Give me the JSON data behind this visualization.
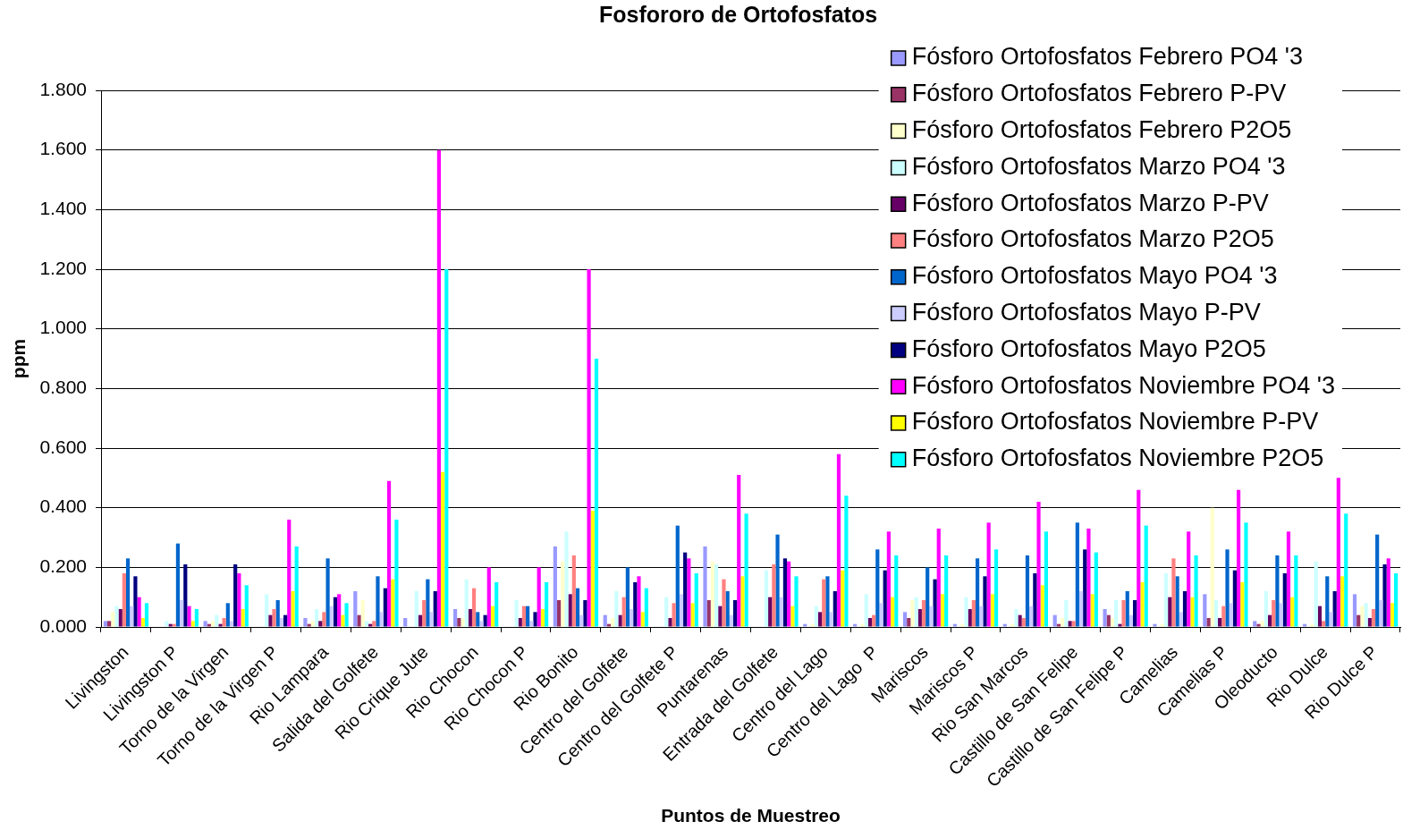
{
  "chart_data": {
    "type": "bar",
    "title": "Fosfororo de Ortofosfatos",
    "xlabel": "Puntos de Muestreo",
    "ylabel": "ppm",
    "categories": [
      "Livingston",
      "Livingston P",
      "Torno de la Virgen",
      "Torno de la Virgen P",
      "Rio Lampara",
      "Salida del Golfete",
      "Rio Crique Jute",
      "Rio Chocon",
      "Rio Chocon P",
      "Rio Bonito",
      "Centro del Golfete",
      "Centro del Golfete P",
      "Puntarenas",
      "Entrada del Golfete",
      "Centro del Lago",
      "Centro del Lago  P",
      "Mariscos",
      "Mariscos P",
      "Rio San Marcos",
      "Castillo de San Felipe",
      "Castillo de San Felipe P",
      "Camelias",
      "Camelias P",
      "Oleoducto",
      "Rio Dulce",
      "Rio Dulce P"
    ],
    "series": [
      {
        "name": "Fósforo Ortofosfatos Febrero PO4 '3",
        "color": "#9999ff",
        "values": [
          0.02,
          null,
          0.02,
          null,
          0.03,
          0.12,
          0.03,
          0.06,
          null,
          0.27,
          0.04,
          null,
          0.27,
          null,
          0.01,
          0.01,
          0.05,
          0.01,
          0.01,
          0.04,
          0.06,
          0.01,
          0.11,
          0.02,
          0.01,
          0.11
        ]
      },
      {
        "name": "Fósforo Ortofosfatos Febrero P-PV",
        "color": "#993366",
        "values": [
          0.02,
          null,
          0.01,
          null,
          0.01,
          0.04,
          null,
          0.03,
          null,
          0.09,
          0.01,
          null,
          0.09,
          null,
          null,
          null,
          0.03,
          null,
          null,
          0.01,
          0.04,
          null,
          0.03,
          0.01,
          null,
          0.04
        ]
      },
      {
        "name": "Fósforo Ortofosfatos Febrero P2O5",
        "color": "#ffffcc",
        "values": [
          0.05,
          null,
          0.02,
          null,
          0.02,
          0.09,
          null,
          0.03,
          null,
          0.22,
          0.03,
          null,
          0.22,
          null,
          0.01,
          0.01,
          0.09,
          0.01,
          0.01,
          0.03,
          0.03,
          0.01,
          0.4,
          0.02,
          0.01,
          0.07
        ]
      },
      {
        "name": "Fósforo Ortofosfatos Marzo PO4 '3",
        "color": "#ccffff",
        "values": [
          0.07,
          0.02,
          0.04,
          0.11,
          0.06,
          0.02,
          0.12,
          0.16,
          0.09,
          0.32,
          0.12,
          0.1,
          0.21,
          0.19,
          0.07,
          0.11,
          0.1,
          0.1,
          0.06,
          0.09,
          0.09,
          0.18,
          0.09,
          0.12,
          0.22,
          0.08
        ]
      },
      {
        "name": "Fósforo Ortofosfatos Marzo P-PV",
        "color": "#660066",
        "values": [
          0.06,
          0.01,
          0.01,
          0.04,
          0.02,
          0.01,
          0.04,
          0.06,
          0.03,
          0.11,
          0.04,
          0.03,
          0.07,
          0.1,
          0.05,
          0.03,
          0.06,
          0.06,
          0.04,
          0.02,
          0.01,
          0.1,
          0.03,
          0.04,
          0.07,
          0.03
        ]
      },
      {
        "name": "Fósforo Ortofosfatos Marzo P2O5",
        "color": "#ff8080",
        "values": [
          0.18,
          0.01,
          0.03,
          0.06,
          0.05,
          0.02,
          0.09,
          0.13,
          0.07,
          0.24,
          0.1,
          0.08,
          0.16,
          0.21,
          0.16,
          0.04,
          0.09,
          0.09,
          0.03,
          0.02,
          0.09,
          0.23,
          0.07,
          0.09,
          0.02,
          0.06
        ]
      },
      {
        "name": "Fósforo Ortofosfatos Mayo PO4 '3",
        "color": "#0066cc",
        "values": [
          0.23,
          0.28,
          0.08,
          0.09,
          0.23,
          0.17,
          0.16,
          0.05,
          0.07,
          0.13,
          0.2,
          0.34,
          0.12,
          0.31,
          0.17,
          0.26,
          0.2,
          0.23,
          0.24,
          0.35,
          0.12,
          0.17,
          0.26,
          0.24,
          0.17,
          0.31
        ]
      },
      {
        "name": "Fósforo Ortofosfatos Mayo P-PV",
        "color": "#ccccff",
        "values": [
          0.07,
          0.09,
          0.02,
          0.03,
          0.07,
          0.05,
          0.05,
          0.02,
          0.02,
          0.04,
          0.06,
          0.11,
          0.04,
          0.1,
          0.05,
          0.08,
          0.07,
          0.07,
          0.07,
          0.12,
          0.04,
          0.05,
          0.08,
          0.08,
          0.05,
          0.09
        ]
      },
      {
        "name": "Fósforo Ortofosfatos Mayo P2O5",
        "color": "#000080",
        "values": [
          0.17,
          0.21,
          0.21,
          0.04,
          0.1,
          0.13,
          0.12,
          0.04,
          0.05,
          0.09,
          0.15,
          0.25,
          0.09,
          0.23,
          0.12,
          0.19,
          0.16,
          0.17,
          0.18,
          0.26,
          0.09,
          0.12,
          0.19,
          0.18,
          0.12,
          0.21
        ]
      },
      {
        "name": "Fósforo Ortofosfatos Noviembre PO4 '3",
        "color": "#ff00ff",
        "values": [
          0.1,
          0.07,
          0.18,
          0.36,
          0.11,
          0.49,
          1.6,
          0.2,
          0.2,
          1.2,
          0.17,
          0.23,
          0.51,
          0.22,
          0.58,
          0.32,
          0.33,
          0.35,
          0.42,
          0.33,
          0.46,
          0.32,
          0.46,
          0.32,
          0.5,
          0.23
        ]
      },
      {
        "name": "Fósforo Ortofosfatos Noviembre P-PV",
        "color": "#ffff00",
        "values": [
          0.03,
          0.02,
          0.06,
          0.12,
          0.04,
          0.16,
          0.52,
          0.07,
          0.06,
          0.39,
          0.05,
          0.08,
          0.17,
          0.07,
          0.19,
          0.1,
          0.11,
          0.11,
          0.14,
          0.11,
          0.15,
          0.1,
          0.15,
          0.1,
          0.17,
          0.08
        ]
      },
      {
        "name": "Fósforo Ortofosfatos Noviembre P2O5",
        "color": "#00ffff",
        "values": [
          0.08,
          0.06,
          0.14,
          0.27,
          0.08,
          0.36,
          1.2,
          0.15,
          0.15,
          0.9,
          0.13,
          0.18,
          0.38,
          0.17,
          0.44,
          0.24,
          0.24,
          0.26,
          0.32,
          0.25,
          0.34,
          0.24,
          0.35,
          0.24,
          0.38,
          0.18
        ]
      }
    ],
    "ylim": [
      0,
      1.8
    ],
    "yticks": [
      {
        "value": 0,
        "label": "0.000"
      },
      {
        "value": 0.2,
        "label": "0.200"
      },
      {
        "value": 0.4,
        "label": "0.400"
      },
      {
        "value": 0.6,
        "label": "0.600"
      },
      {
        "value": 0.8,
        "label": "0.800"
      },
      {
        "value": 1.0,
        "label": "1.000"
      },
      {
        "value": 1.2,
        "label": "1.200"
      },
      {
        "value": 1.4,
        "label": "1.400"
      },
      {
        "value": 1.6,
        "label": "1.600"
      },
      {
        "value": 1.8,
        "label": "1.800"
      }
    ],
    "grid": "y",
    "legend": "top right"
  }
}
